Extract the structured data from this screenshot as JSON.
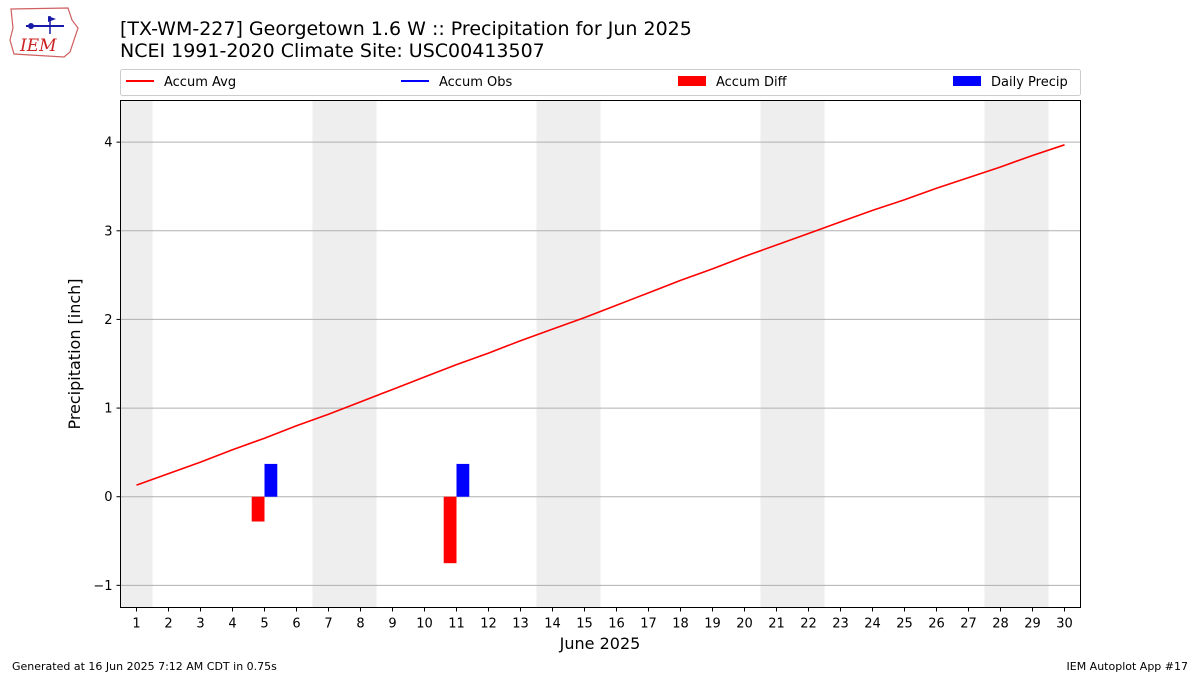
{
  "header": {
    "title_line1": "[TX-WM-227] Georgetown 1.6 W :: Precipitation for Jun 2025",
    "title_line2": "NCEI 1991-2020 Climate Site: USC00413507"
  },
  "logo": {
    "text": "IEM"
  },
  "footer": {
    "left": "Generated at 16 Jun 2025 7:12 AM CDT in 0.75s",
    "right": "IEM Autoplot App #17"
  },
  "chart_data": {
    "type": "line",
    "xlabel": "June 2025",
    "ylabel": "Precipitation [inch]",
    "xlim": [
      0.5,
      30.5
    ],
    "ylim": [
      -1.25,
      4.47
    ],
    "yticks": [
      -1,
      0,
      1,
      2,
      3,
      4
    ],
    "ytick_labels": [
      "−1",
      "0",
      "1",
      "2",
      "3",
      "4"
    ],
    "x": [
      1,
      2,
      3,
      4,
      5,
      6,
      7,
      8,
      9,
      10,
      11,
      12,
      13,
      14,
      15,
      16,
      17,
      18,
      19,
      20,
      21,
      22,
      23,
      24,
      25,
      26,
      27,
      28,
      29,
      30
    ],
    "weekend_shading": [
      [
        0.5,
        1.5
      ],
      [
        6.5,
        8.5
      ],
      [
        13.5,
        15.5
      ],
      [
        20.5,
        22.5
      ],
      [
        27.5,
        29.5
      ]
    ],
    "grid": "y",
    "legend": {
      "placement": "top",
      "entries": [
        {
          "label": "Accum Avg",
          "kind": "line",
          "color": "#ff0000"
        },
        {
          "label": "Accum Obs",
          "kind": "line",
          "color": "#0000ff"
        },
        {
          "label": "Accum Diff",
          "kind": "bar",
          "color": "#ff0000"
        },
        {
          "label": "Daily Precip",
          "kind": "bar",
          "color": "#0000ff"
        }
      ]
    },
    "series": [
      {
        "name": "Accum Avg",
        "kind": "line",
        "color": "#ff0000",
        "values": [
          0.13,
          0.26,
          0.39,
          0.53,
          0.66,
          0.8,
          0.93,
          1.07,
          1.21,
          1.35,
          1.49,
          1.62,
          1.76,
          1.89,
          2.02,
          2.16,
          2.3,
          2.44,
          2.57,
          2.71,
          2.84,
          2.97,
          3.1,
          3.23,
          3.35,
          3.48,
          3.6,
          3.72,
          3.85,
          3.97
        ]
      },
      {
        "name": "Accum Diff",
        "kind": "bar",
        "color": "#ff0000",
        "points": [
          {
            "x": 5,
            "value": -0.28
          },
          {
            "x": 11,
            "value": -0.75
          }
        ]
      },
      {
        "name": "Daily Precip",
        "kind": "bar",
        "color": "#0000ff",
        "points": [
          {
            "x": 5,
            "value": 0.37
          },
          {
            "x": 11,
            "value": 0.37
          }
        ]
      }
    ]
  }
}
